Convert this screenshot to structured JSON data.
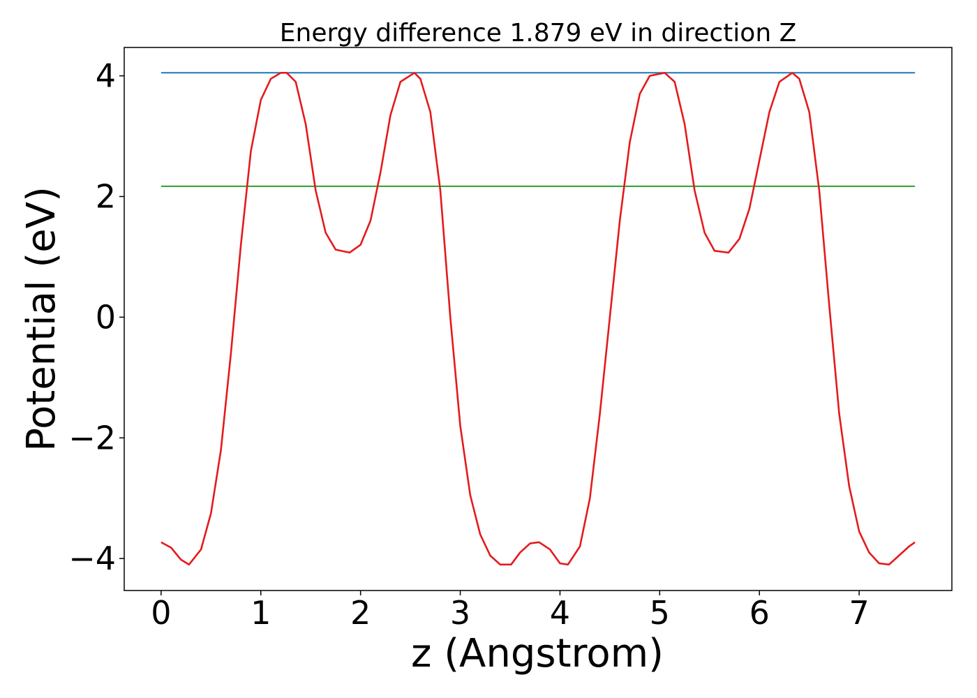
{
  "chart_data": {
    "type": "line",
    "title": "Energy difference 1.879 eV in direction Z",
    "xlabel": "z (Angstrom)",
    "ylabel": "Potential (eV)",
    "xlim": [
      -0.37,
      7.93
    ],
    "ylim": [
      -4.53,
      4.47
    ],
    "xticks": [
      0,
      1,
      2,
      3,
      4,
      5,
      6,
      7
    ],
    "yticks": [
      -4,
      -2,
      0,
      2,
      4
    ],
    "xtick_labels": [
      "0",
      "1",
      "2",
      "3",
      "4",
      "5",
      "6",
      "7"
    ],
    "ytick_labels": [
      "−4",
      "−2",
      "0",
      "2",
      "4"
    ],
    "grid": false,
    "legend": "none",
    "series": [
      {
        "color": "#1f77b4",
        "x": [
          0,
          7.56
        ],
        "y": [
          4.05,
          4.05
        ]
      },
      {
        "color": "#2ca02c",
        "x": [
          0,
          7.56
        ],
        "y": [
          2.17,
          2.17
        ]
      },
      {
        "color": "#e41a1c",
        "x": [
          0.0,
          0.1,
          0.2,
          0.28,
          0.4,
          0.5,
          0.6,
          0.7,
          0.8,
          0.9,
          1.0,
          1.1,
          1.2,
          1.26,
          1.35,
          1.45,
          1.55,
          1.65,
          1.75,
          1.89,
          2.0,
          2.1,
          2.2,
          2.3,
          2.4,
          2.54,
          2.6,
          2.7,
          2.8,
          2.9,
          3.0,
          3.1,
          3.2,
          3.3,
          3.4,
          3.51,
          3.6,
          3.7,
          3.79,
          3.9,
          4.0,
          4.08,
          4.2,
          4.3,
          4.4,
          4.5,
          4.6,
          4.7,
          4.8,
          4.9,
          5.05,
          5.15,
          5.25,
          5.35,
          5.45,
          5.55,
          5.69,
          5.8,
          5.9,
          6.0,
          6.1,
          6.2,
          6.33,
          6.4,
          6.5,
          6.6,
          6.7,
          6.8,
          6.9,
          7.0,
          7.1,
          7.2,
          7.3,
          7.4,
          7.5,
          7.56
        ],
        "y": [
          -3.73,
          -3.82,
          -4.02,
          -4.1,
          -3.85,
          -3.25,
          -2.2,
          -0.6,
          1.2,
          2.75,
          3.6,
          3.95,
          4.05,
          4.05,
          3.9,
          3.2,
          2.1,
          1.4,
          1.12,
          1.07,
          1.2,
          1.6,
          2.4,
          3.35,
          3.9,
          4.05,
          3.95,
          3.4,
          2.1,
          0.0,
          -1.8,
          -2.95,
          -3.6,
          -3.95,
          -4.1,
          -4.1,
          -3.9,
          -3.75,
          -3.73,
          -3.85,
          -4.08,
          -4.1,
          -3.8,
          -3.0,
          -1.6,
          0.0,
          1.6,
          2.9,
          3.7,
          4.0,
          4.05,
          3.9,
          3.2,
          2.1,
          1.4,
          1.1,
          1.07,
          1.3,
          1.8,
          2.6,
          3.4,
          3.9,
          4.05,
          3.95,
          3.4,
          2.1,
          0.2,
          -1.6,
          -2.8,
          -3.55,
          -3.9,
          -4.08,
          -4.1,
          -3.95,
          -3.8,
          -3.73
        ]
      }
    ]
  }
}
